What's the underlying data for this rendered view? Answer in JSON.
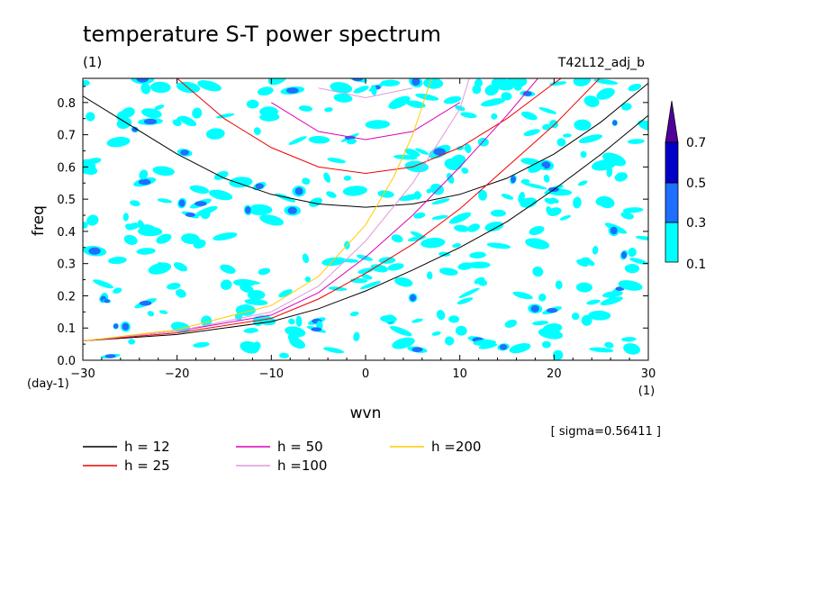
{
  "header": {
    "title": "temperature S-T power spectrum",
    "unit_left": "(1)",
    "run_id": "T42L12_adj_b"
  },
  "axes": {
    "xlabel": "wvn",
    "ylabel": "freq",
    "x_unit": "(1)",
    "y_unit": "(day-1)"
  },
  "sigma_text": "[ sigma=0.56411 ]",
  "colorbar": {
    "labels": [
      "0.1",
      "0.3",
      "0.5",
      "0.7"
    ],
    "colors": [
      "#00ffff",
      "#1e6eff",
      "#0000c8",
      "#50009a"
    ]
  },
  "chart_data": {
    "type": "contour",
    "title": "temperature S-T power spectrum",
    "xlabel": "wvn",
    "ylabel": "freq",
    "xlim": [
      -30,
      30
    ],
    "ylim": [
      0,
      0.875
    ],
    "x_ticks": [
      "-30",
      "-20",
      "-10",
      "0",
      "10",
      "20",
      "30"
    ],
    "y_ticks": [
      "0.0",
      "0.1",
      "0.2",
      "0.3",
      "0.4",
      "0.5",
      "0.6",
      "0.7",
      "0.8"
    ],
    "contour_levels": [
      0.1,
      0.3,
      0.5,
      0.7
    ],
    "sigma": 0.56411,
    "dispersion_curves": [
      {
        "name": "h = 12",
        "color": "#000000",
        "branches": [
          {
            "x": [
              -30,
              -20,
              -15,
              -10,
              -5,
              0,
              5,
              10,
              15,
              20,
              25,
              30
            ],
            "y": [
              0.82,
              0.64,
              0.565,
              0.515,
              0.485,
              0.475,
              0.485,
              0.515,
              0.565,
              0.64,
              0.74,
              0.86
            ]
          },
          {
            "x": [
              -30,
              -20,
              -10,
              -5,
              0,
              5,
              10,
              15,
              20,
              25,
              30
            ],
            "y": [
              0.06,
              0.08,
              0.12,
              0.16,
              0.215,
              0.28,
              0.35,
              0.43,
              0.53,
              0.64,
              0.76
            ]
          }
        ]
      },
      {
        "name": "h = 25",
        "color": "#ee0000",
        "branches": [
          {
            "x": [
              -20,
              -15,
              -10,
              -5,
              0,
              5,
              10,
              15,
              20,
              25
            ],
            "y": [
              0.875,
              0.75,
              0.66,
              0.6,
              0.58,
              0.6,
              0.66,
              0.75,
              0.86,
              0.96
            ]
          },
          {
            "x": [
              -30,
              -20,
              -10,
              -5,
              0,
              5,
              10,
              15,
              20,
              25
            ],
            "y": [
              0.06,
              0.085,
              0.13,
              0.19,
              0.27,
              0.36,
              0.47,
              0.6,
              0.73,
              0.88
            ]
          }
        ]
      },
      {
        "name": "h = 50",
        "color": "#dd00bb",
        "branches": [
          {
            "x": [
              -10,
              -5,
              0,
              5,
              10
            ],
            "y": [
              0.8,
              0.71,
              0.685,
              0.71,
              0.8
            ]
          },
          {
            "x": [
              -30,
              -20,
              -10,
              -5,
              0,
              5,
              10,
              15,
              19
            ],
            "y": [
              0.06,
              0.09,
              0.14,
              0.21,
              0.32,
              0.45,
              0.6,
              0.76,
              0.9
            ]
          }
        ]
      },
      {
        "name": "h =100",
        "color": "#dd99dd",
        "branches": [
          {
            "x": [
              -5,
              0,
              5
            ],
            "y": [
              0.845,
              0.815,
              0.845
            ]
          },
          {
            "x": [
              -30,
              -20,
              -10,
              -5,
              0,
              5,
              10,
              11
            ],
            "y": [
              0.06,
              0.09,
              0.15,
              0.23,
              0.37,
              0.55,
              0.78,
              0.875
            ]
          }
        ]
      },
      {
        "name": "h =200",
        "color": "#ffcc00",
        "branches": [
          {
            "x": [
              -30,
              -20,
              -10,
              -5,
              0,
              3,
              5,
              7
            ],
            "y": [
              0.06,
              0.095,
              0.17,
              0.26,
              0.42,
              0.57,
              0.7,
              0.875
            ]
          }
        ]
      }
    ]
  }
}
